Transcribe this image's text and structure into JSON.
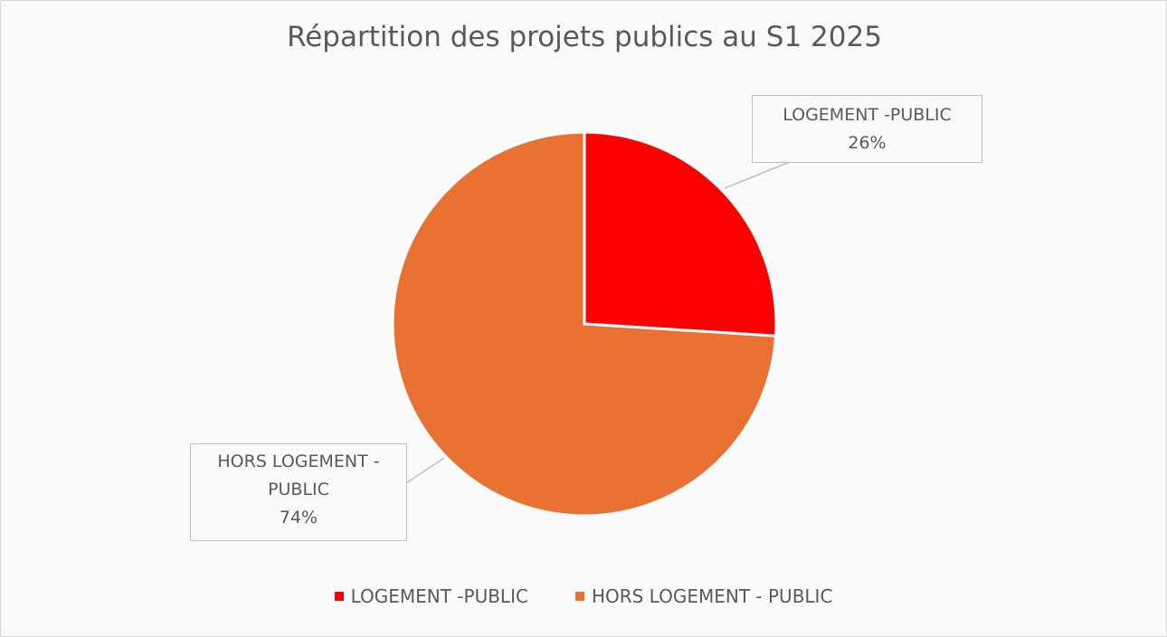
{
  "chart_data": {
    "type": "pie",
    "title": "Répartition des projets publics au S1 2025",
    "categories": [
      "LOGEMENT -PUBLIC",
      "HORS LOGEMENT - PUBLIC"
    ],
    "values": [
      26,
      74
    ],
    "value_labels": [
      "26%",
      "74%"
    ],
    "colors": [
      "#ff0000",
      "#e97132"
    ],
    "legend": "bottom"
  }
}
